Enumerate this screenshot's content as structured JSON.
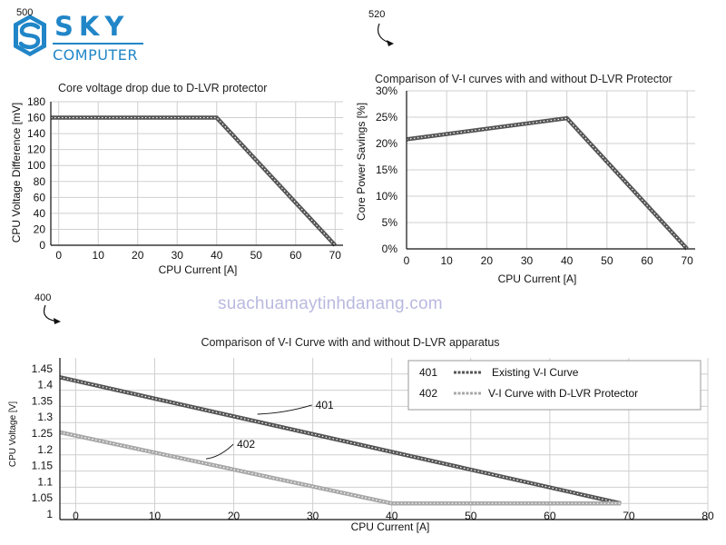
{
  "brand": {
    "name_top": "SKY",
    "name_bottom": "COMPUTER",
    "accent": "#2186c8"
  },
  "figure_refs": {
    "top_left": "500",
    "top_right": "520",
    "bottom": "400"
  },
  "watermark": "suachuamaytinhdanang.com",
  "chart_data": [
    {
      "id": "voltage-drop",
      "type": "line",
      "title": "Core voltage drop due to D-LVR protector",
      "xlabel": "CPU Current [A]",
      "ylabel": "CPU Voltage Difference [mV]",
      "x_ticks": [
        0,
        10,
        20,
        30,
        40,
        50,
        60,
        70
      ],
      "y_ticks": [
        "0",
        "20",
        "40",
        "60",
        "80",
        "100",
        "120",
        "140",
        "160",
        "180"
      ],
      "xlim": [
        -2,
        72
      ],
      "ylim": [
        0,
        180
      ],
      "series": [
        {
          "name": "Voltage difference",
          "x": [
            -2,
            40,
            70
          ],
          "y": [
            160,
            160,
            0
          ],
          "color": "#555555"
        }
      ]
    },
    {
      "id": "power-savings",
      "type": "line",
      "title": "Comparison of V-I curves with and without D-LVR Protector",
      "xlabel": "CPU Current [A]",
      "ylabel": "Core Power Savings [%]",
      "x_ticks": [
        0,
        10,
        20,
        30,
        40,
        50,
        60,
        70
      ],
      "y_ticks": [
        "0%",
        "5%",
        "10%",
        "15%",
        "20%",
        "25%",
        "30%"
      ],
      "xlim": [
        0,
        72
      ],
      "ylim": [
        0,
        30
      ],
      "series": [
        {
          "name": "Power savings",
          "x": [
            0,
            40,
            70
          ],
          "y": [
            20.8,
            24.8,
            0
          ],
          "color": "#555555"
        }
      ]
    },
    {
      "id": "vi-curve",
      "type": "line",
      "title": "Comparison of V-I Curve with and without D-LVR apparatus",
      "xlabel": "CPU Current [A]",
      "ylabel": "CPU Voltage [V]",
      "x_ticks": [
        0,
        10,
        20,
        30,
        40,
        50,
        60,
        70,
        80
      ],
      "y_ticks": [
        "1",
        "1.05",
        "1.1",
        "1.15",
        "1.2",
        "1.25",
        "1.3",
        "1.35",
        "1.4",
        "1.45"
      ],
      "xlim": [
        -2,
        80
      ],
      "ylim": [
        1.0,
        1.5
      ],
      "series": [
        {
          "ref": "401",
          "name": "Existing V-I Curve",
          "x": [
            -2,
            69
          ],
          "y": [
            1.44,
            1.05
          ],
          "color": "#555555"
        },
        {
          "ref": "402",
          "name": "V-I Curve with D-LVR Protector",
          "x": [
            -2,
            40,
            69
          ],
          "y": [
            1.27,
            1.05,
            1.05
          ],
          "color": "#a8a8a8"
        }
      ],
      "annotations": [
        {
          "text": "401",
          "x": 23,
          "y": 1.326
        },
        {
          "text": "402",
          "x": 16.5,
          "y": 1.188
        }
      ]
    }
  ]
}
